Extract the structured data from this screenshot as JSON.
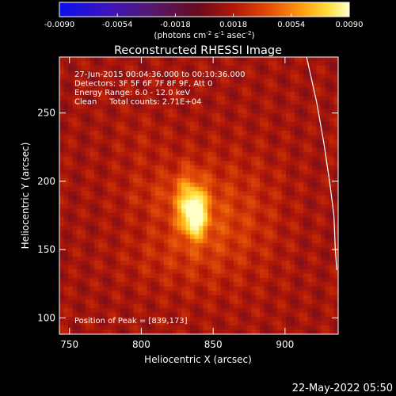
{
  "chart_data": {
    "type": "heatmap",
    "title": "Reconstructed RHESSI Image",
    "xlabel": "Heliocentric X (arcsec)",
    "ylabel": "Heliocentric Y (arcsec)",
    "xlim": [
      743,
      937
    ],
    "ylim": [
      88,
      291
    ],
    "x_ticks": [
      750,
      800,
      850,
      900
    ],
    "y_ticks": [
      100,
      150,
      200,
      250
    ],
    "colorbar": {
      "range": [
        -0.009,
        0.009
      ],
      "tick_labels": [
        "-0.0090",
        "-0.0054",
        "-0.0018",
        "0.0018",
        "0.0054",
        "0.0090"
      ],
      "unit_parts": [
        "(photons cm",
        "-2",
        " s",
        "-1",
        " asec",
        "-2",
        ")"
      ],
      "colormap": "blue-purple-red-yellow-white"
    },
    "annotations": [
      "27-Jun-2015 00:04:36.000 to 00:10:36.000",
      "Detectors: 3F 5F 6F 7F 8F 9F, Att 0",
      "Energy Range: 6.0 - 12.0 keV",
      "Clean     Total counts: 2.71E+04"
    ],
    "peak_label": "Position of Peak = [839,173]",
    "peak": {
      "x": 839,
      "y": 173,
      "value": 0.009
    },
    "sources": [
      {
        "x": 837,
        "y": 175,
        "sx": 6,
        "sy": 11,
        "amp": 0.0065
      },
      {
        "x": 833,
        "y": 190,
        "sx": 8,
        "sy": 14,
        "amp": 0.0025
      },
      {
        "x": 845,
        "y": 170,
        "sx": 22,
        "sy": 30,
        "amp": 0.0022
      },
      {
        "x": 810,
        "y": 190,
        "sx": 20,
        "sy": 12,
        "amp": 0.0009
      },
      {
        "x": 880,
        "y": 175,
        "sx": 18,
        "sy": 35,
        "amp": 0.0008
      },
      {
        "x": 810,
        "y": 145,
        "sx": 22,
        "sy": 18,
        "amp": 0.0008
      },
      {
        "x": 800,
        "y": 225,
        "sx": 15,
        "sy": 18,
        "amp": 0.0006
      }
    ],
    "background_level": 0.0014,
    "limb_curve": [
      [
        915,
        291
      ],
      [
        922,
        258
      ],
      [
        927,
        228
      ],
      [
        931,
        200
      ],
      [
        934,
        175
      ],
      [
        935,
        150
      ],
      [
        936,
        135
      ]
    ],
    "footer_timestamp": "22-May-2022 05:50"
  }
}
